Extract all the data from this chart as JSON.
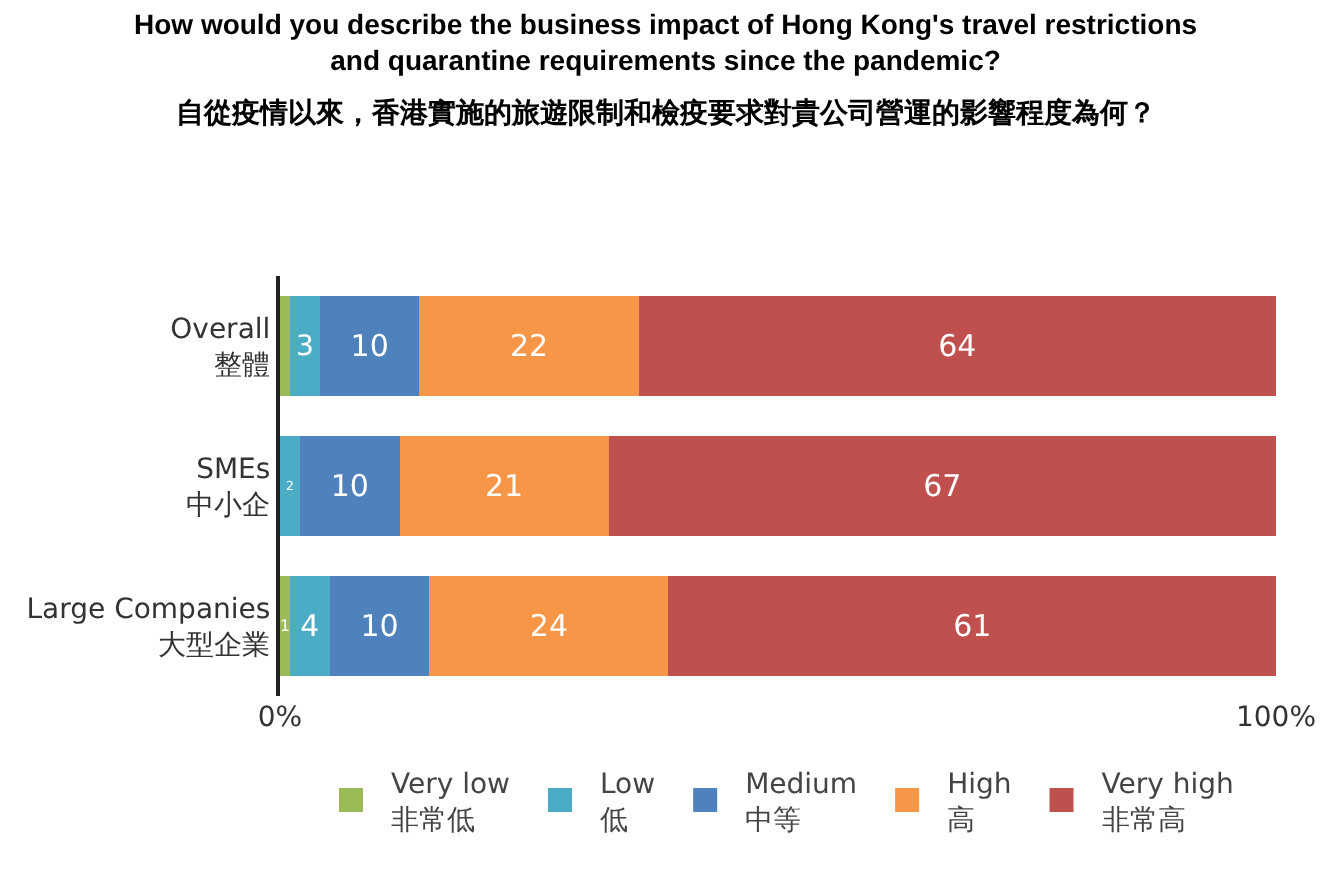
{
  "chart_data": {
    "type": "bar",
    "orientation": "horizontal",
    "stacked": true,
    "title": "How would you describe the business impact of Hong Kong's travel restrictions\nand quarantine requirements since the pandemic?",
    "subtitle": "自從疫情以來，香港實施的旅遊限制和檢疫要求對貴公司營運的影響程度為何？",
    "categories": [
      "Overall\n整體",
      "SMEs\n中小企",
      "Large Companies\n大型企業"
    ],
    "series": [
      {
        "name": "Very low\n非常低",
        "color": "#9bbb59",
        "values": [
          1,
          0,
          1
        ],
        "value_labels": [
          null,
          null,
          "1"
        ]
      },
      {
        "name": "Low\n低",
        "color": "#4bacc6",
        "values": [
          3,
          2,
          4
        ],
        "value_labels": [
          "3",
          "2",
          "4"
        ]
      },
      {
        "name": "Medium\n中等",
        "color": "#4f81bd",
        "values": [
          10,
          10,
          10
        ],
        "value_labels": [
          "10",
          "10",
          "10"
        ]
      },
      {
        "name": "High\n高",
        "color": "#f79646",
        "values": [
          22,
          21,
          24
        ],
        "value_labels": [
          "22",
          "21",
          "24"
        ]
      },
      {
        "name": "Very high\n非常高",
        "color": "#c0504d",
        "values": [
          64,
          67,
          61
        ],
        "value_labels": [
          "64",
          "67",
          "61"
        ]
      }
    ],
    "xlim": [
      0,
      100
    ],
    "xticks": [
      {
        "value": 0,
        "label": "0%"
      },
      {
        "value": 100,
        "label": "100%"
      }
    ],
    "legend": "bottom"
  }
}
